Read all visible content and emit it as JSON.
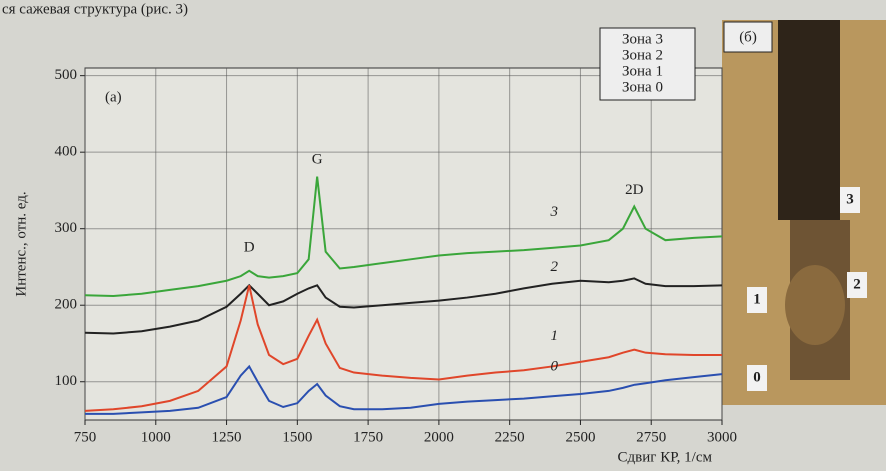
{
  "header_text": "ся сажевая структура (рис. 3)",
  "chart_data": {
    "type": "line",
    "panel_label": "(а)",
    "xlabel": "Сдвиг КР, 1/см",
    "ylabel": "Интенс., отн. ед.",
    "x": [
      750,
      850,
      950,
      1050,
      1150,
      1250,
      1300,
      1330,
      1360,
      1400,
      1450,
      1500,
      1540,
      1570,
      1600,
      1650,
      1700,
      1800,
      1900,
      2000,
      2100,
      2200,
      2300,
      2400,
      2500,
      2600,
      2650,
      2690,
      2730,
      2800,
      2900,
      3000
    ],
    "xlim": [
      750,
      3000
    ],
    "xticks": [
      750,
      1000,
      1250,
      1500,
      1750,
      2000,
      2250,
      2500,
      2750,
      3000
    ],
    "ylim": [
      50,
      510
    ],
    "yticks": [
      100,
      200,
      300,
      400,
      500
    ],
    "grid": true,
    "legend_position": "upper right",
    "peak_labels": [
      {
        "text": "D",
        "x": 1330,
        "y": 275
      },
      {
        "text": "G",
        "x": 1570,
        "y": 390
      },
      {
        "text": "2D",
        "x": 2690,
        "y": 350
      }
    ],
    "series": [
      {
        "name": "Зона 3",
        "label": "3",
        "color": "#3aa63a",
        "values": [
          213,
          212,
          215,
          220,
          225,
          232,
          238,
          245,
          238,
          236,
          238,
          242,
          260,
          368,
          270,
          248,
          250,
          255,
          260,
          265,
          268,
          270,
          272,
          275,
          278,
          285,
          300,
          329,
          300,
          285,
          288,
          290
        ]
      },
      {
        "name": "Зона 2",
        "label": "2",
        "color": "#222222",
        "values": [
          164,
          163,
          166,
          172,
          180,
          198,
          215,
          226,
          215,
          200,
          205,
          215,
          222,
          226,
          210,
          198,
          197,
          200,
          203,
          206,
          210,
          215,
          222,
          228,
          232,
          230,
          232,
          235,
          228,
          225,
          225,
          226
        ]
      },
      {
        "name": "Зона 1",
        "label": "1",
        "color": "#e0462a",
        "values": [
          62,
          64,
          68,
          75,
          88,
          120,
          180,
          226,
          175,
          135,
          123,
          130,
          160,
          181,
          150,
          118,
          112,
          108,
          105,
          103,
          108,
          112,
          115,
          120,
          126,
          132,
          138,
          142,
          138,
          136,
          135,
          135
        ]
      },
      {
        "name": "Зона 0",
        "label": "0",
        "color": "#2a4fb0",
        "values": [
          58,
          58,
          60,
          62,
          66,
          80,
          108,
          120,
          100,
          75,
          67,
          72,
          88,
          97,
          82,
          68,
          64,
          64,
          66,
          71,
          74,
          76,
          78,
          81,
          84,
          88,
          92,
          96,
          98,
          102,
          106,
          110
        ]
      }
    ]
  },
  "inset": {
    "label": "(б)",
    "markers": [
      "3",
      "2",
      "1",
      "0"
    ]
  }
}
